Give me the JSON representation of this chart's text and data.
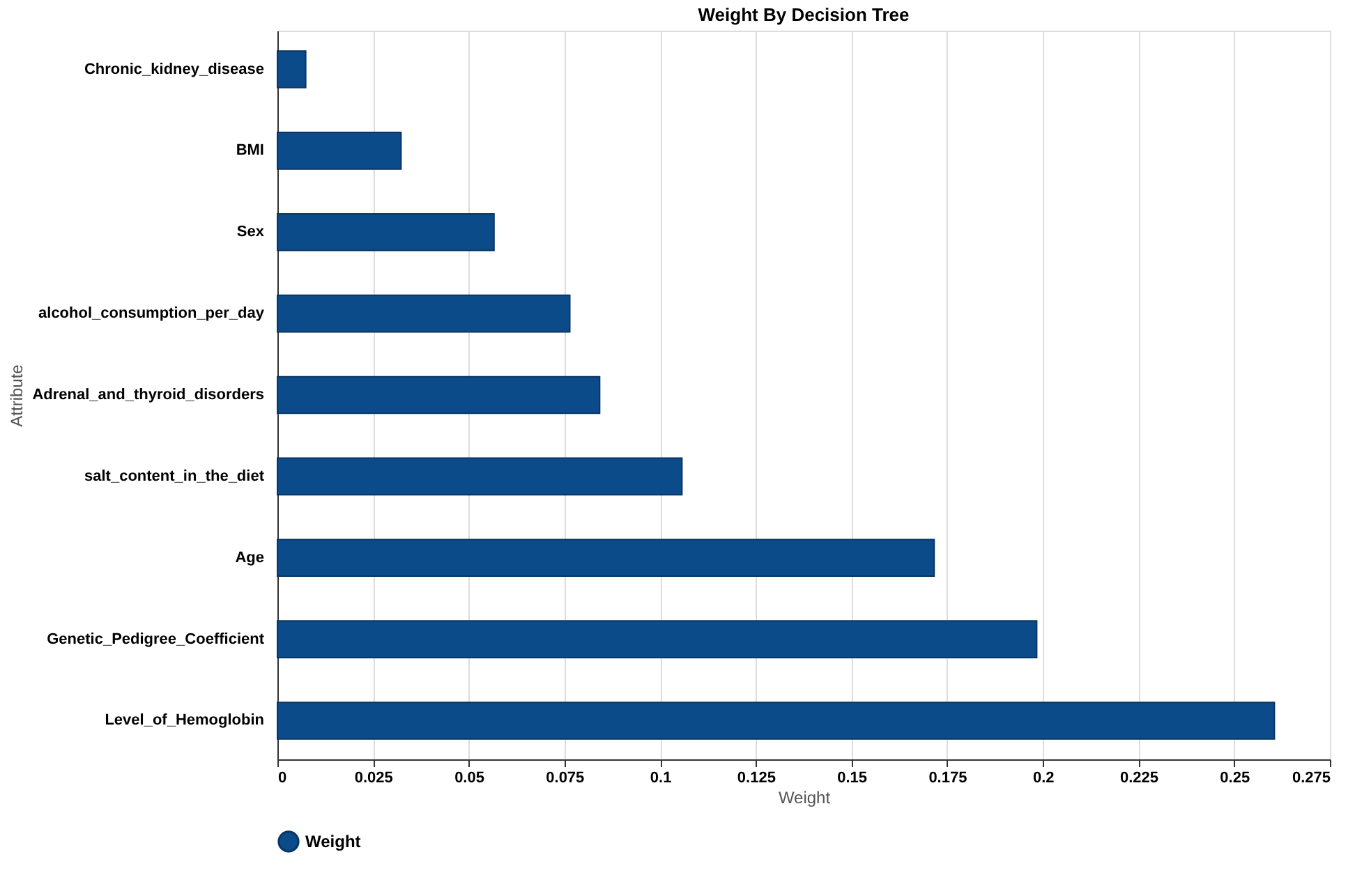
{
  "chart_data": {
    "type": "bar",
    "orientation": "horizontal",
    "title": "Weight By Decision Tree",
    "xlabel": "Weight",
    "ylabel": "Attribute",
    "categories": [
      "Chronic_kidney_disease",
      "BMI",
      "Sex",
      "alcohol_consumption_per_day",
      "Adrenal_and_thyroid_disorders",
      "salt_content_in_the_diet",
      "Age",
      "Genetic_Pedigree_Coefficient",
      "Level_of_Hemoglobin"
    ],
    "series": [
      {
        "name": "Weight",
        "color": "#0c4b8a",
        "values": [
          0.0074,
          0.0323,
          0.0566,
          0.0764,
          0.0842,
          0.1057,
          0.1716,
          0.1984,
          0.2605
        ]
      }
    ],
    "xlim": [
      0,
      0.275
    ],
    "xticks": [
      0,
      0.025,
      0.05,
      0.075,
      0.1,
      0.125,
      0.15,
      0.175,
      0.2,
      0.225,
      0.25,
      0.275
    ],
    "grid": "x",
    "legend": "bottom"
  }
}
